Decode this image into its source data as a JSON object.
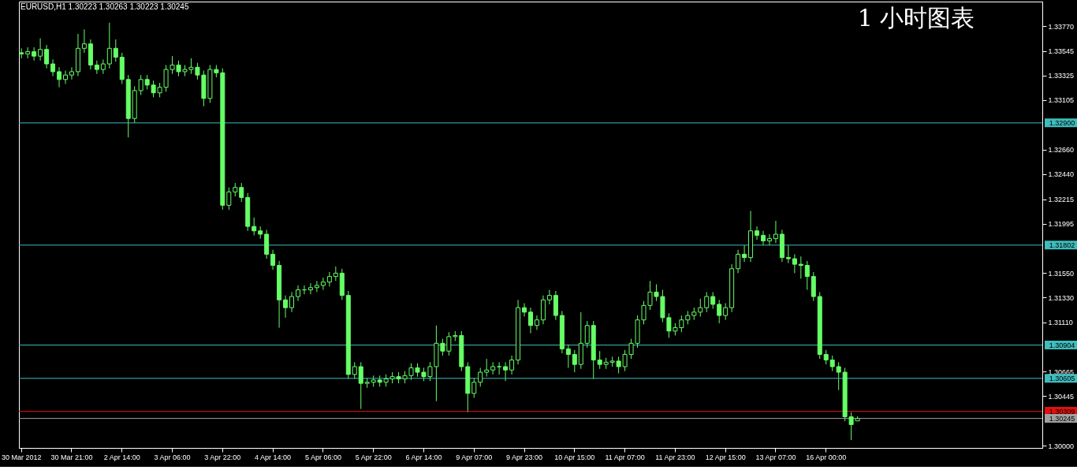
{
  "chart_data": {
    "type": "candlestick",
    "title": "EURUSD,H1  1.30223 1.30263 1.30223 1.30245",
    "annotations": [
      "1 小时图表"
    ],
    "color": "#66ff66",
    "categories": [
      "30 Mar 2012",
      null,
      null,
      null,
      null,
      null,
      null,
      null,
      "30 Mar 21:00",
      null,
      null,
      null,
      null,
      null,
      null,
      null,
      "2 Apr 14:00",
      null,
      null,
      null,
      null,
      null,
      null,
      null,
      "3 Apr 06:00",
      null,
      null,
      null,
      null,
      null,
      null,
      null,
      "3 Apr 22:00",
      null,
      null,
      null,
      null,
      null,
      null,
      null,
      "4 Apr 14:00",
      null,
      null,
      null,
      null,
      null,
      null,
      null,
      "5 Apr 06:00",
      null,
      null,
      null,
      null,
      null,
      null,
      null,
      "5 Apr 22:00",
      null,
      null,
      null,
      null,
      null,
      null,
      null,
      "6 Apr 14:00",
      null,
      null,
      null,
      null,
      null,
      null,
      null,
      "9 Apr 07:00",
      null,
      null,
      null,
      null,
      null,
      null,
      null,
      "9 Apr 23:00",
      null,
      null,
      null,
      null,
      null,
      null,
      null,
      "10 Apr 15:00",
      null,
      null,
      null,
      null,
      null,
      null,
      null,
      "11 Apr 07:00",
      null,
      null,
      null,
      null,
      null,
      null,
      null,
      "11 Apr 23:00",
      null,
      null,
      null,
      null,
      null,
      null,
      null,
      "12 Apr 15:00",
      null,
      null,
      null,
      null,
      null,
      null,
      null,
      "13 Apr 07:00",
      null,
      null,
      null,
      null,
      null,
      null,
      null,
      "16 Apr 00:00",
      null,
      null,
      null,
      null,
      null,
      null,
      null,
      null,
      null,
      null,
      null,
      null,
      null,
      null,
      null,
      null,
      null,
      null,
      null,
      null,
      null,
      null,
      null,
      null,
      null,
      null,
      null,
      null,
      null,
      null,
      null,
      null,
      null,
      null
    ],
    "ohlc": [
      [
        1.3353,
        1.3357,
        1.3348,
        1.3352
      ],
      [
        1.3352,
        1.3358,
        1.3348,
        1.3354
      ],
      [
        1.3354,
        1.3358,
        1.3346,
        1.335
      ],
      [
        1.335,
        1.3366,
        1.3346,
        1.3356
      ],
      [
        1.3356,
        1.336,
        1.3339,
        1.3343
      ],
      [
        1.3343,
        1.3347,
        1.3332,
        1.3336
      ],
      [
        1.3336,
        1.334,
        1.3322,
        1.3329
      ],
      [
        1.3329,
        1.3337,
        1.3325,
        1.3333
      ],
      [
        1.3333,
        1.334,
        1.3329,
        1.3336
      ],
      [
        1.3336,
        1.337,
        1.3332,
        1.3357
      ],
      [
        1.3357,
        1.3374,
        1.3353,
        1.3361
      ],
      [
        1.3361,
        1.3365,
        1.3338,
        1.3342
      ],
      [
        1.3342,
        1.3346,
        1.3334,
        1.3338
      ],
      [
        1.3338,
        1.3347,
        1.3334,
        1.3343
      ],
      [
        1.3343,
        1.338,
        1.3339,
        1.3357
      ],
      [
        1.3357,
        1.3365,
        1.3345,
        1.3349
      ],
      [
        1.3349,
        1.3353,
        1.3325,
        1.3329
      ],
      [
        1.3329,
        1.3333,
        1.3277,
        1.3294
      ],
      [
        1.3294,
        1.3323,
        1.329,
        1.3319
      ],
      [
        1.3319,
        1.3333,
        1.3315,
        1.3329
      ],
      [
        1.3329,
        1.3333,
        1.332,
        1.3324
      ],
      [
        1.3324,
        1.3328,
        1.3313,
        1.3317
      ],
      [
        1.3317,
        1.3326,
        1.3313,
        1.3322
      ],
      [
        1.3322,
        1.3342,
        1.3318,
        1.3338
      ],
      [
        1.3338,
        1.335,
        1.3334,
        1.3342
      ],
      [
        1.3342,
        1.3346,
        1.3332,
        1.3336
      ],
      [
        1.3336,
        1.3342,
        1.3332,
        1.3338
      ],
      [
        1.3338,
        1.3348,
        1.3334,
        1.334
      ],
      [
        1.334,
        1.3344,
        1.3329,
        1.3333
      ],
      [
        1.3333,
        1.3337,
        1.3305,
        1.3312
      ],
      [
        1.3312,
        1.3342,
        1.3308,
        1.3338
      ],
      [
        1.3338,
        1.3342,
        1.3331,
        1.3335
      ],
      [
        1.3335,
        1.3339,
        1.3212,
        1.3216
      ],
      [
        1.3216,
        1.3232,
        1.3212,
        1.3228
      ],
      [
        1.3228,
        1.3236,
        1.3224,
        1.3232
      ],
      [
        1.3232,
        1.3236,
        1.3219,
        1.3223
      ],
      [
        1.3223,
        1.3227,
        1.3193,
        1.3197
      ],
      [
        1.3197,
        1.3205,
        1.3189,
        1.3193
      ],
      [
        1.3193,
        1.3197,
        1.3186,
        1.319
      ],
      [
        1.319,
        1.3194,
        1.3168,
        1.3172
      ],
      [
        1.3172,
        1.3176,
        1.3158,
        1.3162
      ],
      [
        1.3162,
        1.3166,
        1.3106,
        1.3131
      ],
      [
        1.3131,
        1.3135,
        1.3115,
        1.3124
      ],
      [
        1.3124,
        1.3138,
        1.312,
        1.3134
      ],
      [
        1.3134,
        1.3144,
        1.313,
        1.314
      ],
      [
        1.314,
        1.3144,
        1.3136,
        1.314
      ],
      [
        1.314,
        1.3146,
        1.3136,
        1.3142
      ],
      [
        1.3142,
        1.3148,
        1.3138,
        1.3144
      ],
      [
        1.3144,
        1.3151,
        1.314,
        1.3147
      ],
      [
        1.3147,
        1.3156,
        1.3143,
        1.3152
      ],
      [
        1.3152,
        1.3161,
        1.3148,
        1.3155
      ],
      [
        1.3155,
        1.3159,
        1.3131,
        1.3135
      ],
      [
        1.3135,
        1.3139,
        1.306,
        1.3064
      ],
      [
        1.3064,
        1.3075,
        1.306,
        1.3071
      ],
      [
        1.3071,
        1.3075,
        1.3033,
        1.3056
      ],
      [
        1.3056,
        1.3061,
        1.3052,
        1.3057
      ],
      [
        1.3057,
        1.3063,
        1.3053,
        1.3059
      ],
      [
        1.3059,
        1.3063,
        1.3053,
        1.3057
      ],
      [
        1.3057,
        1.3064,
        1.3053,
        1.306
      ],
      [
        1.306,
        1.3066,
        1.3056,
        1.3062
      ],
      [
        1.3062,
        1.3066,
        1.3056,
        1.306
      ],
      [
        1.306,
        1.3067,
        1.3056,
        1.3063
      ],
      [
        1.3063,
        1.3074,
        1.3059,
        1.307
      ],
      [
        1.307,
        1.3074,
        1.3062,
        1.3066
      ],
      [
        1.3066,
        1.307,
        1.3058,
        1.3062
      ],
      [
        1.3062,
        1.3075,
        1.3058,
        1.3071
      ],
      [
        1.3071,
        1.3108,
        1.304,
        1.3092
      ],
      [
        1.3092,
        1.3096,
        1.3081,
        1.3085
      ],
      [
        1.3085,
        1.3102,
        1.3081,
        1.3098
      ],
      [
        1.3098,
        1.3103,
        1.3094,
        1.3099
      ],
      [
        1.3099,
        1.3103,
        1.3067,
        1.3071
      ],
      [
        1.3071,
        1.3075,
        1.303,
        1.3047
      ],
      [
        1.3047,
        1.3061,
        1.3043,
        1.3057
      ],
      [
        1.3057,
        1.307,
        1.3053,
        1.3066
      ],
      [
        1.3066,
        1.3078,
        1.3062,
        1.3068
      ],
      [
        1.3068,
        1.3075,
        1.3064,
        1.3071
      ],
      [
        1.3071,
        1.3075,
        1.3064,
        1.3071
      ],
      [
        1.3071,
        1.3075,
        1.3058,
        1.3068
      ],
      [
        1.3068,
        1.3081,
        1.3064,
        1.3077
      ],
      [
        1.3077,
        1.3131,
        1.3073,
        1.3124
      ],
      [
        1.3124,
        1.3128,
        1.3116,
        1.312
      ],
      [
        1.312,
        1.3124,
        1.3101,
        1.3108
      ],
      [
        1.3108,
        1.3117,
        1.3104,
        1.3113
      ],
      [
        1.3113,
        1.3135,
        1.3109,
        1.3131
      ],
      [
        1.3131,
        1.314,
        1.3127,
        1.3135
      ],
      [
        1.3135,
        1.3139,
        1.3113,
        1.3117
      ],
      [
        1.3117,
        1.3121,
        1.3083,
        1.3087
      ],
      [
        1.3087,
        1.3091,
        1.307,
        1.3082
      ],
      [
        1.3082,
        1.3086,
        1.3066,
        1.3073
      ],
      [
        1.3073,
        1.312,
        1.3069,
        1.3092
      ],
      [
        1.3092,
        1.3112,
        1.3088,
        1.3108
      ],
      [
        1.3108,
        1.3112,
        1.306,
        1.3077
      ],
      [
        1.3077,
        1.3085,
        1.3069,
        1.3073
      ],
      [
        1.3073,
        1.3079,
        1.3069,
        1.3075
      ],
      [
        1.3075,
        1.308,
        1.3071,
        1.3076
      ],
      [
        1.3076,
        1.308,
        1.3065,
        1.3071
      ],
      [
        1.3071,
        1.3086,
        1.3067,
        1.3082
      ],
      [
        1.3082,
        1.3096,
        1.3078,
        1.3092
      ],
      [
        1.3092,
        1.3117,
        1.3088,
        1.3113
      ],
      [
        1.3113,
        1.313,
        1.3109,
        1.3126
      ],
      [
        1.3126,
        1.3148,
        1.3122,
        1.3138
      ],
      [
        1.3138,
        1.3145,
        1.313,
        1.3134
      ],
      [
        1.3134,
        1.314,
        1.3111,
        1.3115
      ],
      [
        1.3115,
        1.3119,
        1.3097,
        1.3103
      ],
      [
        1.3103,
        1.311,
        1.3099,
        1.3106
      ],
      [
        1.3106,
        1.3117,
        1.3102,
        1.3113
      ],
      [
        1.3113,
        1.3121,
        1.3109,
        1.3117
      ],
      [
        1.3117,
        1.3124,
        1.3113,
        1.312
      ],
      [
        1.312,
        1.3132,
        1.3116,
        1.3124
      ],
      [
        1.3124,
        1.3138,
        1.312,
        1.3134
      ],
      [
        1.3134,
        1.3138,
        1.3123,
        1.3127
      ],
      [
        1.3127,
        1.3131,
        1.311,
        1.3117
      ],
      [
        1.3117,
        1.3128,
        1.3113,
        1.3124
      ],
      [
        1.3124,
        1.3163,
        1.312,
        1.3159
      ],
      [
        1.3159,
        1.3176,
        1.3155,
        1.3172
      ],
      [
        1.3172,
        1.318,
        1.3165,
        1.3169
      ],
      [
        1.3169,
        1.3211,
        1.3165,
        1.3193
      ],
      [
        1.3193,
        1.3197,
        1.3185,
        1.3189
      ],
      [
        1.3189,
        1.3193,
        1.318,
        1.3184
      ],
      [
        1.3184,
        1.319,
        1.318,
        1.3186
      ],
      [
        1.3186,
        1.3202,
        1.3182,
        1.319
      ],
      [
        1.319,
        1.3194,
        1.3165,
        1.3169
      ],
      [
        1.3169,
        1.318,
        1.3164,
        1.3168
      ],
      [
        1.3168,
        1.3172,
        1.3155,
        1.3163
      ],
      [
        1.3163,
        1.317,
        1.315,
        1.3162
      ],
      [
        1.3162,
        1.3166,
        1.314,
        1.3152
      ],
      [
        1.3152,
        1.3156,
        1.313,
        1.3134
      ],
      [
        1.3134,
        1.3138,
        1.3078,
        1.3082
      ],
      [
        1.3082,
        1.3086,
        1.3073,
        1.3077
      ],
      [
        1.3077,
        1.3081,
        1.3067,
        1.3071
      ],
      [
        1.3071,
        1.3075,
        1.305,
        1.3066
      ],
      [
        1.3066,
        1.307,
        1.3022,
        1.3026
      ],
      [
        1.3026,
        1.303,
        1.3005,
        1.3019
      ],
      [
        1.30223,
        1.30263,
        1.30223,
        1.30245
      ],
      null,
      null,
      null,
      null,
      null,
      null,
      null,
      null,
      null,
      null,
      null,
      null,
      null,
      null,
      null,
      null,
      null,
      null,
      null,
      null,
      null,
      null,
      null,
      null,
      null,
      null,
      null,
      null,
      null
    ],
    "ylim": [
      1.2998,
      1.3399
    ],
    "yticks": [
      {
        "value": 1.3377,
        "label": "1.33770"
      },
      {
        "value": 1.33545,
        "label": "1.33545"
      },
      {
        "value": 1.33325,
        "label": "1.33325"
      },
      {
        "value": 1.33105,
        "label": "1.33105"
      },
      {
        "value": 1.3266,
        "label": "1.32660"
      },
      {
        "value": 1.3244,
        "label": "1.32440"
      },
      {
        "value": 1.32215,
        "label": "1.32215"
      },
      {
        "value": 1.31995,
        "label": "1.31995"
      },
      {
        "value": 1.3155,
        "label": "1.31550"
      },
      {
        "value": 1.3133,
        "label": "1.31330"
      },
      {
        "value": 1.3111,
        "label": "1.31110"
      },
      {
        "value": 1.30665,
        "label": "1.30665"
      },
      {
        "value": 1.30445,
        "label": "1.30445"
      },
      {
        "value": 1.3,
        "label": "1.30000"
      }
    ],
    "ref_lines": [
      {
        "axis": "y",
        "value": 1.329,
        "label": "1.32900",
        "color": "#3fbcbc"
      },
      {
        "axis": "y",
        "value": 1.31802,
        "label": "1.31802",
        "color": "#3fbcbc"
      },
      {
        "axis": "y",
        "value": 1.30904,
        "label": "1.30904",
        "color": "#3fbcbc"
      },
      {
        "axis": "y",
        "value": 1.30605,
        "label": "1.30605",
        "color": "#3fbcbc"
      },
      {
        "axis": "y",
        "value": 1.30309,
        "label": "1.30309",
        "color": "#e01010"
      },
      {
        "axis": "y",
        "value": 1.30245,
        "label": "1.30245",
        "color": "#a0a0a0"
      }
    ]
  }
}
